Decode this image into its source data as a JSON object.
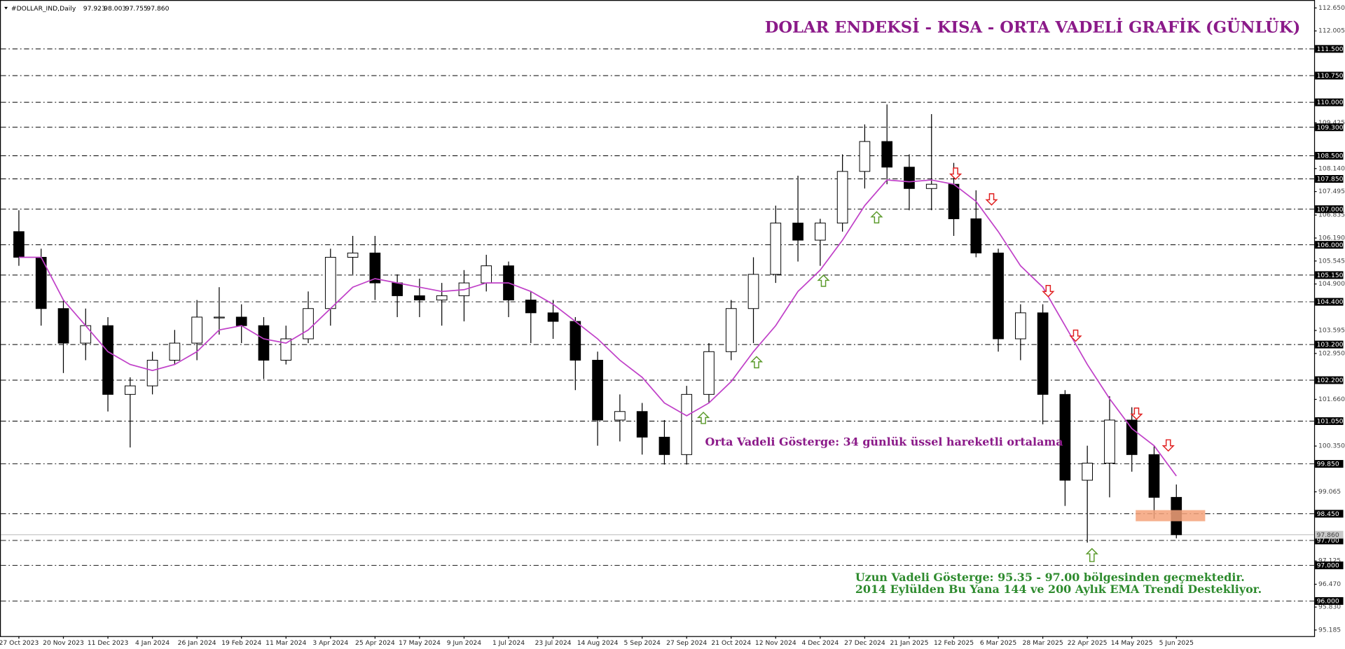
{
  "chart_data": {
    "type": "candlestick",
    "title": "DOLAR ENDEKSİ - KISA - ORTA VADELİ GRAFİK (GÜNLÜK)",
    "symbol": "#DOLLAR_IND,Daily",
    "header_values": [
      "97.923",
      "98.003",
      "97.755",
      "97.860"
    ],
    "annotations": [
      {
        "text": "Orta Vadeli Gösterge: 34 günlük üssel hareketli ortalama",
        "color": "#8b1a89"
      },
      {
        "text": "Uzun Vadeli Gösterge: 95.35 - 97.00 bölgesinden geçmektedir.",
        "color": "#2e8b2e"
      },
      {
        "text": "2014 Eylülden Bu Yana 144 ve 200 Aylık EMA Trendi Destekliyor.",
        "color": "#2e8b2e"
      }
    ],
    "categories": [
      "27 Oct 2023",
      null,
      "20 Nov 2023",
      null,
      "11 Dec 2023",
      null,
      "4 Jan 2024",
      null,
      "26 Jan 2024",
      null,
      "19 Feb 2024",
      null,
      "11 Mar 2024",
      null,
      "3 Apr 2024",
      null,
      "25 Apr 2024",
      null,
      "17 May 2024",
      null,
      "9 Jun 2024",
      null,
      "1 Jul 2024",
      null,
      "23 Jul 2024",
      null,
      "14 Aug 2024",
      null,
      "5 Sep 2024",
      null,
      "27 Sep 2024",
      null,
      "21 Oct 2024",
      null,
      "12 Nov 2024",
      null,
      "4 Dec 2024",
      null,
      "27 Dec 2024",
      null,
      "21 Jan 2025",
      null,
      "12 Feb 2025",
      null,
      "6 Mar 2025",
      null,
      "28 Mar 2025",
      null,
      "22 Apr 2025",
      null,
      "14 May 2025",
      null,
      "5 Jun 2025"
    ],
    "open": [
      106.37,
      105.65,
      104.21,
      103.24,
      103.73,
      101.8,
      102.04,
      102.76,
      103.24,
      103.97,
      103.97,
      103.73,
      102.76,
      103.36,
      104.21,
      105.65,
      105.77,
      104.93,
      104.57,
      104.45,
      104.57,
      104.93,
      105.41,
      104.45,
      104.09,
      103.85,
      102.76,
      101.08,
      101.32,
      100.6,
      100.11,
      101.8,
      103.0,
      104.21,
      105.17,
      106.61,
      106.13,
      106.61,
      108.06,
      108.9,
      108.18,
      107.58,
      107.7,
      106.73,
      105.77,
      103.36,
      104.09,
      101.8,
      99.39,
      99.87,
      101.08,
      100.11,
      98.91
    ],
    "high": [
      106.97,
      105.89,
      104.45,
      104.21,
      103.97,
      102.28,
      103.0,
      103.61,
      104.45,
      104.81,
      104.33,
      103.97,
      103.73,
      104.69,
      105.89,
      106.25,
      106.25,
      105.17,
      105.05,
      104.93,
      105.29,
      105.72,
      105.53,
      104.69,
      104.45,
      103.97,
      103.0,
      101.8,
      101.56,
      101.08,
      102.04,
      103.24,
      104.45,
      105.65,
      107.1,
      107.94,
      106.73,
      108.54,
      109.38,
      109.94,
      108.54,
      109.67,
      108.3,
      107.53,
      105.89,
      104.33,
      104.33,
      101.92,
      100.36,
      101.75,
      101.44,
      100.36,
      99.27
    ],
    "low": [
      105.41,
      103.73,
      102.4,
      102.76,
      101.32,
      100.31,
      101.8,
      102.64,
      102.76,
      103.48,
      103.24,
      102.23,
      102.64,
      103.24,
      103.73,
      105.17,
      104.45,
      103.97,
      103.97,
      103.73,
      103.85,
      104.69,
      103.97,
      103.24,
      103.36,
      101.92,
      100.36,
      100.48,
      100.11,
      99.83,
      99.83,
      101.56,
      102.76,
      103.24,
      104.93,
      105.53,
      105.41,
      106.37,
      107.58,
      107.7,
      106.97,
      106.97,
      106.25,
      105.65,
      103.0,
      102.76,
      100.96,
      98.67,
      97.64,
      98.91,
      99.63,
      98.31,
      97.76
    ],
    "close": [
      105.65,
      104.21,
      103.24,
      103.73,
      101.8,
      102.04,
      102.76,
      103.24,
      103.97,
      103.97,
      103.73,
      102.76,
      103.36,
      104.21,
      105.65,
      105.77,
      104.93,
      104.57,
      104.45,
      104.57,
      104.93,
      105.41,
      104.45,
      104.09,
      103.85,
      102.76,
      101.08,
      101.32,
      100.6,
      100.11,
      101.8,
      103.0,
      104.21,
      105.17,
      106.61,
      106.13,
      106.61,
      108.06,
      108.9,
      108.18,
      107.58,
      107.7,
      106.73,
      105.77,
      103.36,
      104.09,
      101.8,
      99.39,
      99.87,
      101.08,
      100.11,
      98.91,
      97.86
    ],
    "overlay_line": {
      "color": "#c040c8",
      "values": [
        105.65,
        105.65,
        104.45,
        103.73,
        103.0,
        102.64,
        102.47,
        102.64,
        103.0,
        103.61,
        103.73,
        103.36,
        103.24,
        103.61,
        104.21,
        104.81,
        105.05,
        104.93,
        104.81,
        104.69,
        104.74,
        104.93,
        104.93,
        104.69,
        104.33,
        103.85,
        103.36,
        102.76,
        102.28,
        101.56,
        101.2,
        101.56,
        102.16,
        103.0,
        103.73,
        104.69,
        105.29,
        106.13,
        107.1,
        107.82,
        107.77,
        107.82,
        107.7,
        107.22,
        106.37,
        105.41,
        104.81,
        103.73,
        102.64,
        101.68,
        100.84,
        100.36,
        99.51
      ]
    },
    "ylim": [
      95.014,
      112.872
    ],
    "yticks": [
      {
        "value": 112.65,
        "label": "112.650"
      },
      {
        "value": 112.005,
        "label": "112.005"
      },
      {
        "value": 109.425,
        "label": "109.425"
      },
      {
        "value": 108.14,
        "label": "108.140"
      },
      {
        "value": 107.495,
        "label": "107.495"
      },
      {
        "value": 106.835,
        "label": "106.835"
      },
      {
        "value": 106.19,
        "label": "106.190"
      },
      {
        "value": 105.545,
        "label": "105.545"
      },
      {
        "value": 104.9,
        "label": "104.900"
      },
      {
        "value": 103.595,
        "label": "103.595"
      },
      {
        "value": 102.95,
        "label": "102.950"
      },
      {
        "value": 101.66,
        "label": "101.660"
      },
      {
        "value": 100.35,
        "label": "100.350"
      },
      {
        "value": 99.065,
        "label": "99.065"
      },
      {
        "value": 97.125,
        "label": "97.125"
      },
      {
        "value": 96.47,
        "label": "96.470"
      },
      {
        "value": 95.83,
        "label": "95.830"
      },
      {
        "value": 95.185,
        "label": "95.185"
      }
    ],
    "levels": [
      {
        "value": 111.5,
        "label": "111.500"
      },
      {
        "value": 110.75,
        "label": "110.750"
      },
      {
        "value": 110.0,
        "label": "110.000"
      },
      {
        "value": 109.3,
        "label": "109.300"
      },
      {
        "value": 108.5,
        "label": "108.500"
      },
      {
        "value": 107.85,
        "label": "107.850"
      },
      {
        "value": 107.0,
        "label": "107.000"
      },
      {
        "value": 106.0,
        "label": "106.000"
      },
      {
        "value": 105.15,
        "label": "105.150"
      },
      {
        "value": 104.4,
        "label": "104.400"
      },
      {
        "value": 103.2,
        "label": "103.200"
      },
      {
        "value": 102.2,
        "label": "102.200"
      },
      {
        "value": 101.05,
        "label": "101.050"
      },
      {
        "value": 99.85,
        "label": "99.850"
      },
      {
        "value": 98.45,
        "label": "98.450"
      },
      {
        "value": 97.7,
        "label": "97.700"
      },
      {
        "value": 97.0,
        "label": "97.000"
      },
      {
        "value": 96.0,
        "label": "96.000"
      }
    ],
    "last_price": {
      "value": 97.86,
      "label": "97.860"
    }
  }
}
